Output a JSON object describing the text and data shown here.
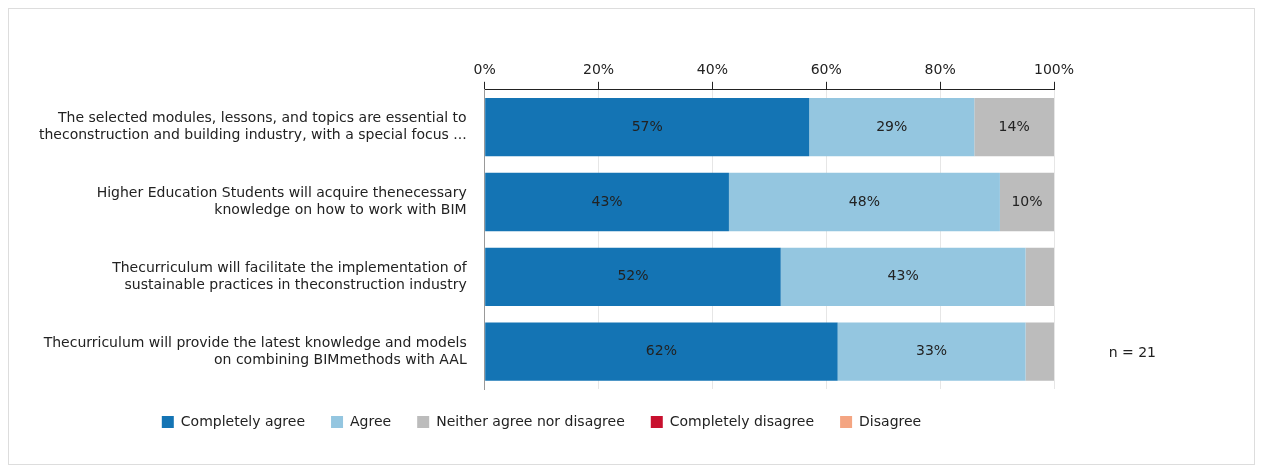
{
  "chart_data": {
    "type": "bar",
    "orientation": "horizontal",
    "stacked": true,
    "categories": [
      "The selected modules, lessons, and topics are essential to\ntheconstruction and building industry, with a special focus ...",
      "Higher Education Students will acquire thenecessary\nknowledge on how to work with BIM",
      "Thecurriculum will facilitate the implementation of\nsustainable practices in theconstruction industry",
      "Thecurriculum will provide the latest knowledge and models\non combining BIMmethods with AAL"
    ],
    "series": [
      {
        "name": "Completely agree",
        "color": "#1474b4",
        "values": [
          57,
          42.9,
          52,
          62
        ],
        "value_labels": [
          "57%",
          "43%",
          "52%",
          "62%"
        ]
      },
      {
        "name": "Agree",
        "color": "#94c6e0",
        "values": [
          29,
          47.6,
          43,
          33
        ],
        "value_labels": [
          "29%",
          "48%",
          "43%",
          "33%"
        ]
      },
      {
        "name": "Neither agree nor disagree",
        "color": "#bcbcbc",
        "values": [
          14,
          9.5,
          5,
          5
        ],
        "value_labels": [
          "14%",
          "10%",
          null,
          null
        ]
      },
      {
        "name": "Completely disagree",
        "color": "#c8102e",
        "values": [
          0,
          0,
          0,
          0
        ]
      },
      {
        "name": "Disagree",
        "color": "#f4a582",
        "values": [
          0,
          0,
          0,
          0
        ]
      }
    ],
    "xlim": [
      0,
      100
    ],
    "xticks": [
      {
        "value": 0,
        "label": "0%"
      },
      {
        "value": 20,
        "label": "20%"
      },
      {
        "value": 40,
        "label": "40%"
      },
      {
        "value": 60,
        "label": "60%"
      },
      {
        "value": 80,
        "label": "80%"
      },
      {
        "value": 100,
        "label": "100%"
      }
    ],
    "grid": "x",
    "legend": "bottom",
    "annotations": [
      "n = 21"
    ]
  }
}
